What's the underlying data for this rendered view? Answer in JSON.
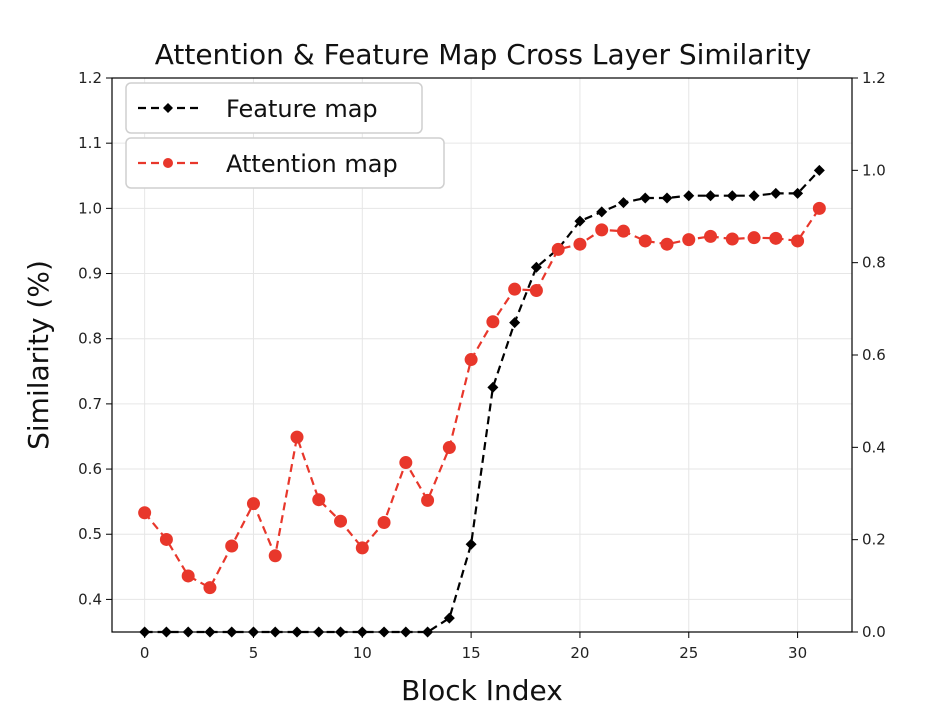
{
  "chart_data": {
    "type": "line",
    "title": "Attention & Feature Map Cross Layer Similarity",
    "xlabel": "Block Index",
    "ylabel": "Similarity (%)",
    "xlim": [
      -1.5,
      32.5
    ],
    "xticks": [
      0,
      5,
      10,
      15,
      20,
      25,
      30
    ],
    "ylim_left": [
      0.35,
      1.2
    ],
    "yticks_left": [
      0.4,
      0.5,
      0.6,
      0.7,
      0.8,
      0.9,
      1.0,
      1.1,
      1.2
    ],
    "ylim_right": [
      0.0,
      1.2
    ],
    "yticks_right": [
      0.0,
      0.2,
      0.4,
      0.6,
      0.8,
      1.0,
      1.2
    ],
    "grid": true,
    "legend_position": "top-left",
    "series": [
      {
        "name": "Feature map",
        "axis": "right",
        "color": "#000000",
        "marker": "diamond",
        "x": [
          0,
          1,
          2,
          3,
          4,
          5,
          6,
          7,
          8,
          9,
          10,
          11,
          12,
          13,
          14,
          15,
          16,
          17,
          18,
          19,
          20,
          21,
          22,
          23,
          24,
          25,
          26,
          27,
          28,
          29,
          30,
          31
        ],
        "values": [
          0.0,
          0.0,
          0.0,
          0.0,
          0.0,
          0.0,
          0.0,
          0.0,
          0.0,
          0.0,
          0.0,
          0.0,
          0.0,
          0.0,
          0.03,
          0.19,
          0.53,
          0.67,
          0.79,
          0.83,
          0.89,
          0.91,
          0.93,
          0.94,
          0.94,
          0.945,
          0.945,
          0.945,
          0.945,
          0.95,
          0.95,
          1.0
        ]
      },
      {
        "name": "Attention map",
        "axis": "left",
        "color": "#e8372b",
        "marker": "circle",
        "x": [
          0,
          1,
          2,
          3,
          4,
          5,
          6,
          7,
          8,
          9,
          10,
          11,
          12,
          13,
          14,
          15,
          16,
          17,
          18,
          19,
          20,
          21,
          22,
          23,
          24,
          25,
          26,
          27,
          28,
          29,
          30,
          31
        ],
        "values": [
          0.533,
          0.492,
          0.436,
          0.418,
          0.482,
          0.547,
          0.467,
          0.649,
          0.553,
          0.52,
          0.479,
          0.518,
          0.61,
          0.552,
          0.633,
          0.768,
          0.826,
          0.876,
          0.874,
          0.937,
          0.945,
          0.967,
          0.965,
          0.95,
          0.945,
          0.952,
          0.957,
          0.953,
          0.955,
          0.954,
          0.95,
          1.0
        ]
      }
    ]
  }
}
